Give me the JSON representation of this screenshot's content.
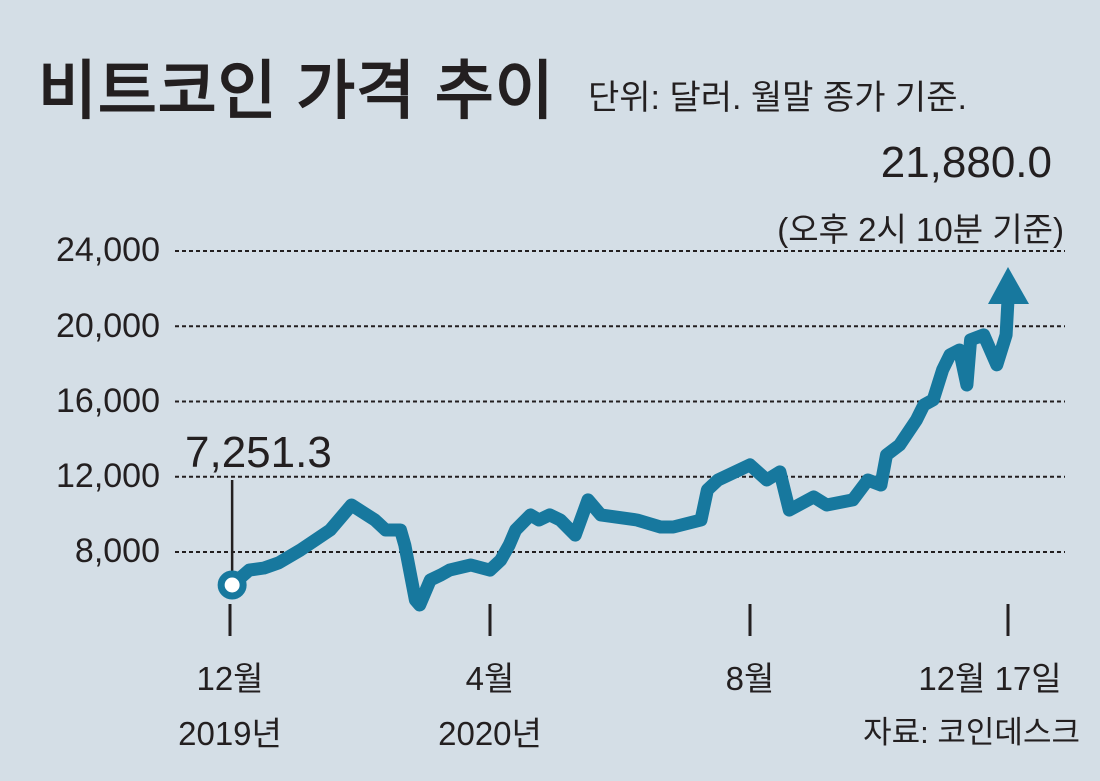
{
  "chart_data": {
    "type": "line",
    "title": "비트코인 가격 추이",
    "subtitle": "단위: 달러. 월말 종가 기준.",
    "source": "자료: 코인데스크",
    "ylim": [
      8000,
      24000
    ],
    "yticks": [
      "24,000",
      "20,000",
      "16,000",
      "12,000",
      "8,000"
    ],
    "ytick_values": [
      24000,
      20000,
      16000,
      12000,
      8000
    ],
    "grid": true,
    "xticks": [
      {
        "date": "2019-12-01",
        "line1": "12월",
        "line2": "2019년"
      },
      {
        "date": "2020-04-01",
        "line1": "4월",
        "line2": "2020년"
      },
      {
        "date": "2020-08-01",
        "line1": "8월",
        "line2": ""
      },
      {
        "date": "2020-12-17",
        "line1": "12월 17일",
        "line2": ""
      }
    ],
    "annotations": {
      "first": "7,251.3",
      "last": "21,880.0",
      "last_note": "(오후 2시 10분 기준)"
    },
    "color": "#17789e",
    "series": [
      {
        "x": [
          "2019-12-02",
          "2019-12-10",
          "2019-12-17",
          "2019-12-24",
          "2020-01-03",
          "2020-01-17",
          "2020-01-27",
          "2020-02-07",
          "2020-02-12",
          "2020-02-19",
          "2020-02-21",
          "2020-02-26",
          "2020-02-28",
          "2020-03-04",
          "2020-03-09",
          "2020-03-13",
          "2020-03-23",
          "2020-04-01",
          "2020-04-06",
          "2020-04-10",
          "2020-04-13",
          "2020-04-20",
          "2020-04-24",
          "2020-04-29",
          "2020-05-04",
          "2020-05-11",
          "2020-05-17",
          "2020-05-23",
          "2020-06-09",
          "2020-06-20",
          "2020-06-26",
          "2020-07-09",
          "2020-07-12",
          "2020-07-17",
          "2020-08-01",
          "2020-08-10",
          "2020-08-17",
          "2020-08-22",
          "2020-09-04",
          "2020-09-11",
          "2020-09-25",
          "2020-10-03",
          "2020-10-10",
          "2020-10-13",
          "2020-10-20",
          "2020-10-29",
          "2020-11-02",
          "2020-11-07",
          "2020-11-12",
          "2020-11-16",
          "2020-11-21",
          "2020-11-25",
          "2020-11-27",
          "2020-12-04",
          "2020-12-11",
          "2020-12-16",
          "2020-12-17"
        ],
        "y": [
          7251.3,
          7040,
          7150,
          7430,
          8100,
          9170,
          10500,
          9700,
          9170,
          9170,
          8370,
          5450,
          5180,
          6510,
          6780,
          7040,
          7310,
          7040,
          7570,
          8370,
          9170,
          9970,
          9700,
          9970,
          9700,
          8900,
          10770,
          9970,
          9700,
          9330,
          9330,
          9700,
          11300,
          11830,
          12630,
          11830,
          12260,
          10230,
          10930,
          10500,
          10770,
          11830,
          11560,
          13160,
          13690,
          15020,
          15820,
          16090,
          17680,
          18480,
          18740,
          16880,
          19280,
          19540,
          17950,
          19540,
          21880.0
        ]
      }
    ]
  }
}
